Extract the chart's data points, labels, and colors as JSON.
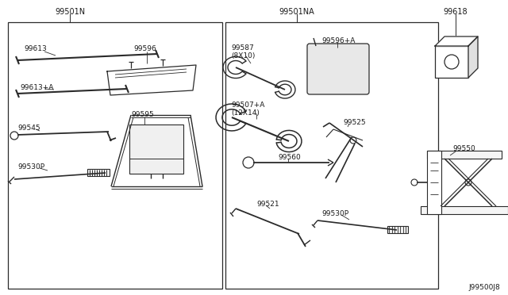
{
  "background_color": "#ffffff",
  "line_color": "#2a2a2a",
  "text_color": "#1a1a1a",
  "fig_width": 6.4,
  "fig_height": 3.72,
  "dpi": 100,
  "box1_label": "99501N",
  "box2_label": "99501NA",
  "label_99618": "99618",
  "label_99550": "99550",
  "label_99613": "99613",
  "label_99596": "99596",
  "label_99613A": "99613+A",
  "label_99545": "99545",
  "label_99530P": "99530P",
  "label_99595": "99595",
  "label_99587": "99587\n(8X10)",
  "label_99596A": "99596+A",
  "label_99507A": "99507+A\n(12X14)",
  "label_99560": "99560",
  "label_99521": "99521",
  "label_99525": "99525",
  "label_99530P2": "99530P",
  "label_bottom": "J99500J8"
}
